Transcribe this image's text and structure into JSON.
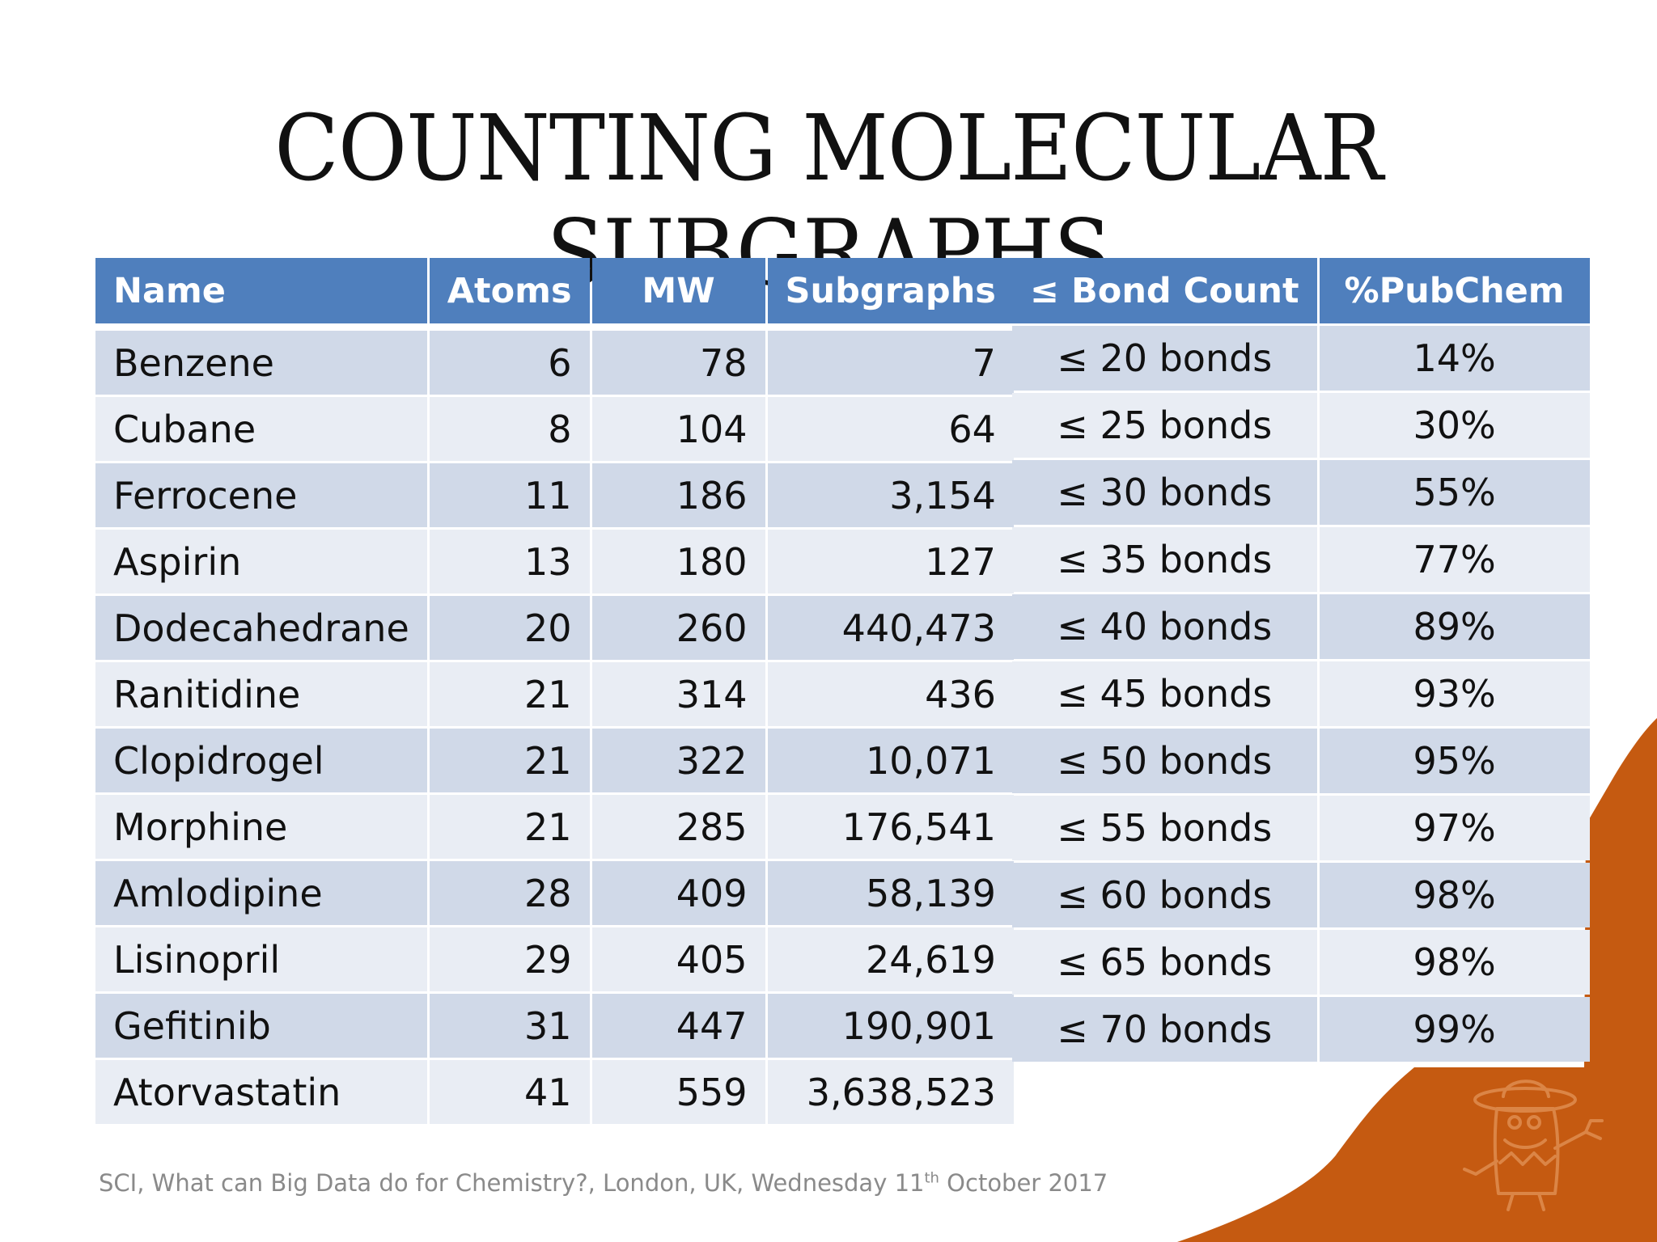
{
  "slide": {
    "title": "Counting Molecular Subgraphs",
    "footer": {
      "text_before": "SCI, What can Big Data do for Chemistry?, London, UK, Wednesday 11",
      "superscript": "th",
      "text_after": " October 2017"
    },
    "accent_color": "#c55a11",
    "header_color": "#4f7fbd",
    "mascot_icon": "cowboy-mascot-icon"
  },
  "molecule_table": {
    "headers": [
      "Name",
      "Atoms",
      "MW",
      "Subgraphs"
    ],
    "rows": [
      [
        "Benzene",
        "6",
        "78",
        "7"
      ],
      [
        "Cubane",
        "8",
        "104",
        "64"
      ],
      [
        "Ferrocene",
        "11",
        "186",
        "3,154"
      ],
      [
        "Aspirin",
        "13",
        "180",
        "127"
      ],
      [
        "Dodecahedrane",
        "20",
        "260",
        "440,473"
      ],
      [
        "Ranitidine",
        "21",
        "314",
        "436"
      ],
      [
        "Clopidrogel",
        "21",
        "322",
        "10,071"
      ],
      [
        "Morphine",
        "21",
        "285",
        "176,541"
      ],
      [
        "Amlodipine",
        "28",
        "409",
        "58,139"
      ],
      [
        "Lisinopril",
        "29",
        "405",
        "24,619"
      ],
      [
        "Gefitinib",
        "31",
        "447",
        "190,901"
      ],
      [
        "Atorvastatin",
        "41",
        "559",
        "3,638,523"
      ]
    ]
  },
  "bond_table": {
    "headers": [
      "≤ Bond Count",
      "%PubChem"
    ],
    "rows": [
      [
        "≤ 20 bonds",
        "14%"
      ],
      [
        "≤ 25 bonds",
        "30%"
      ],
      [
        "≤ 30 bonds",
        "55%"
      ],
      [
        "≤ 35 bonds",
        "77%"
      ],
      [
        "≤ 40 bonds",
        "89%"
      ],
      [
        "≤ 45 bonds",
        "93%"
      ],
      [
        "≤ 50 bonds",
        "95%"
      ],
      [
        "≤ 55 bonds",
        "97%"
      ],
      [
        "≤ 60 bonds",
        "98%"
      ],
      [
        "≤ 65 bonds",
        "98%"
      ],
      [
        "≤ 70 bonds",
        "99%"
      ]
    ]
  }
}
